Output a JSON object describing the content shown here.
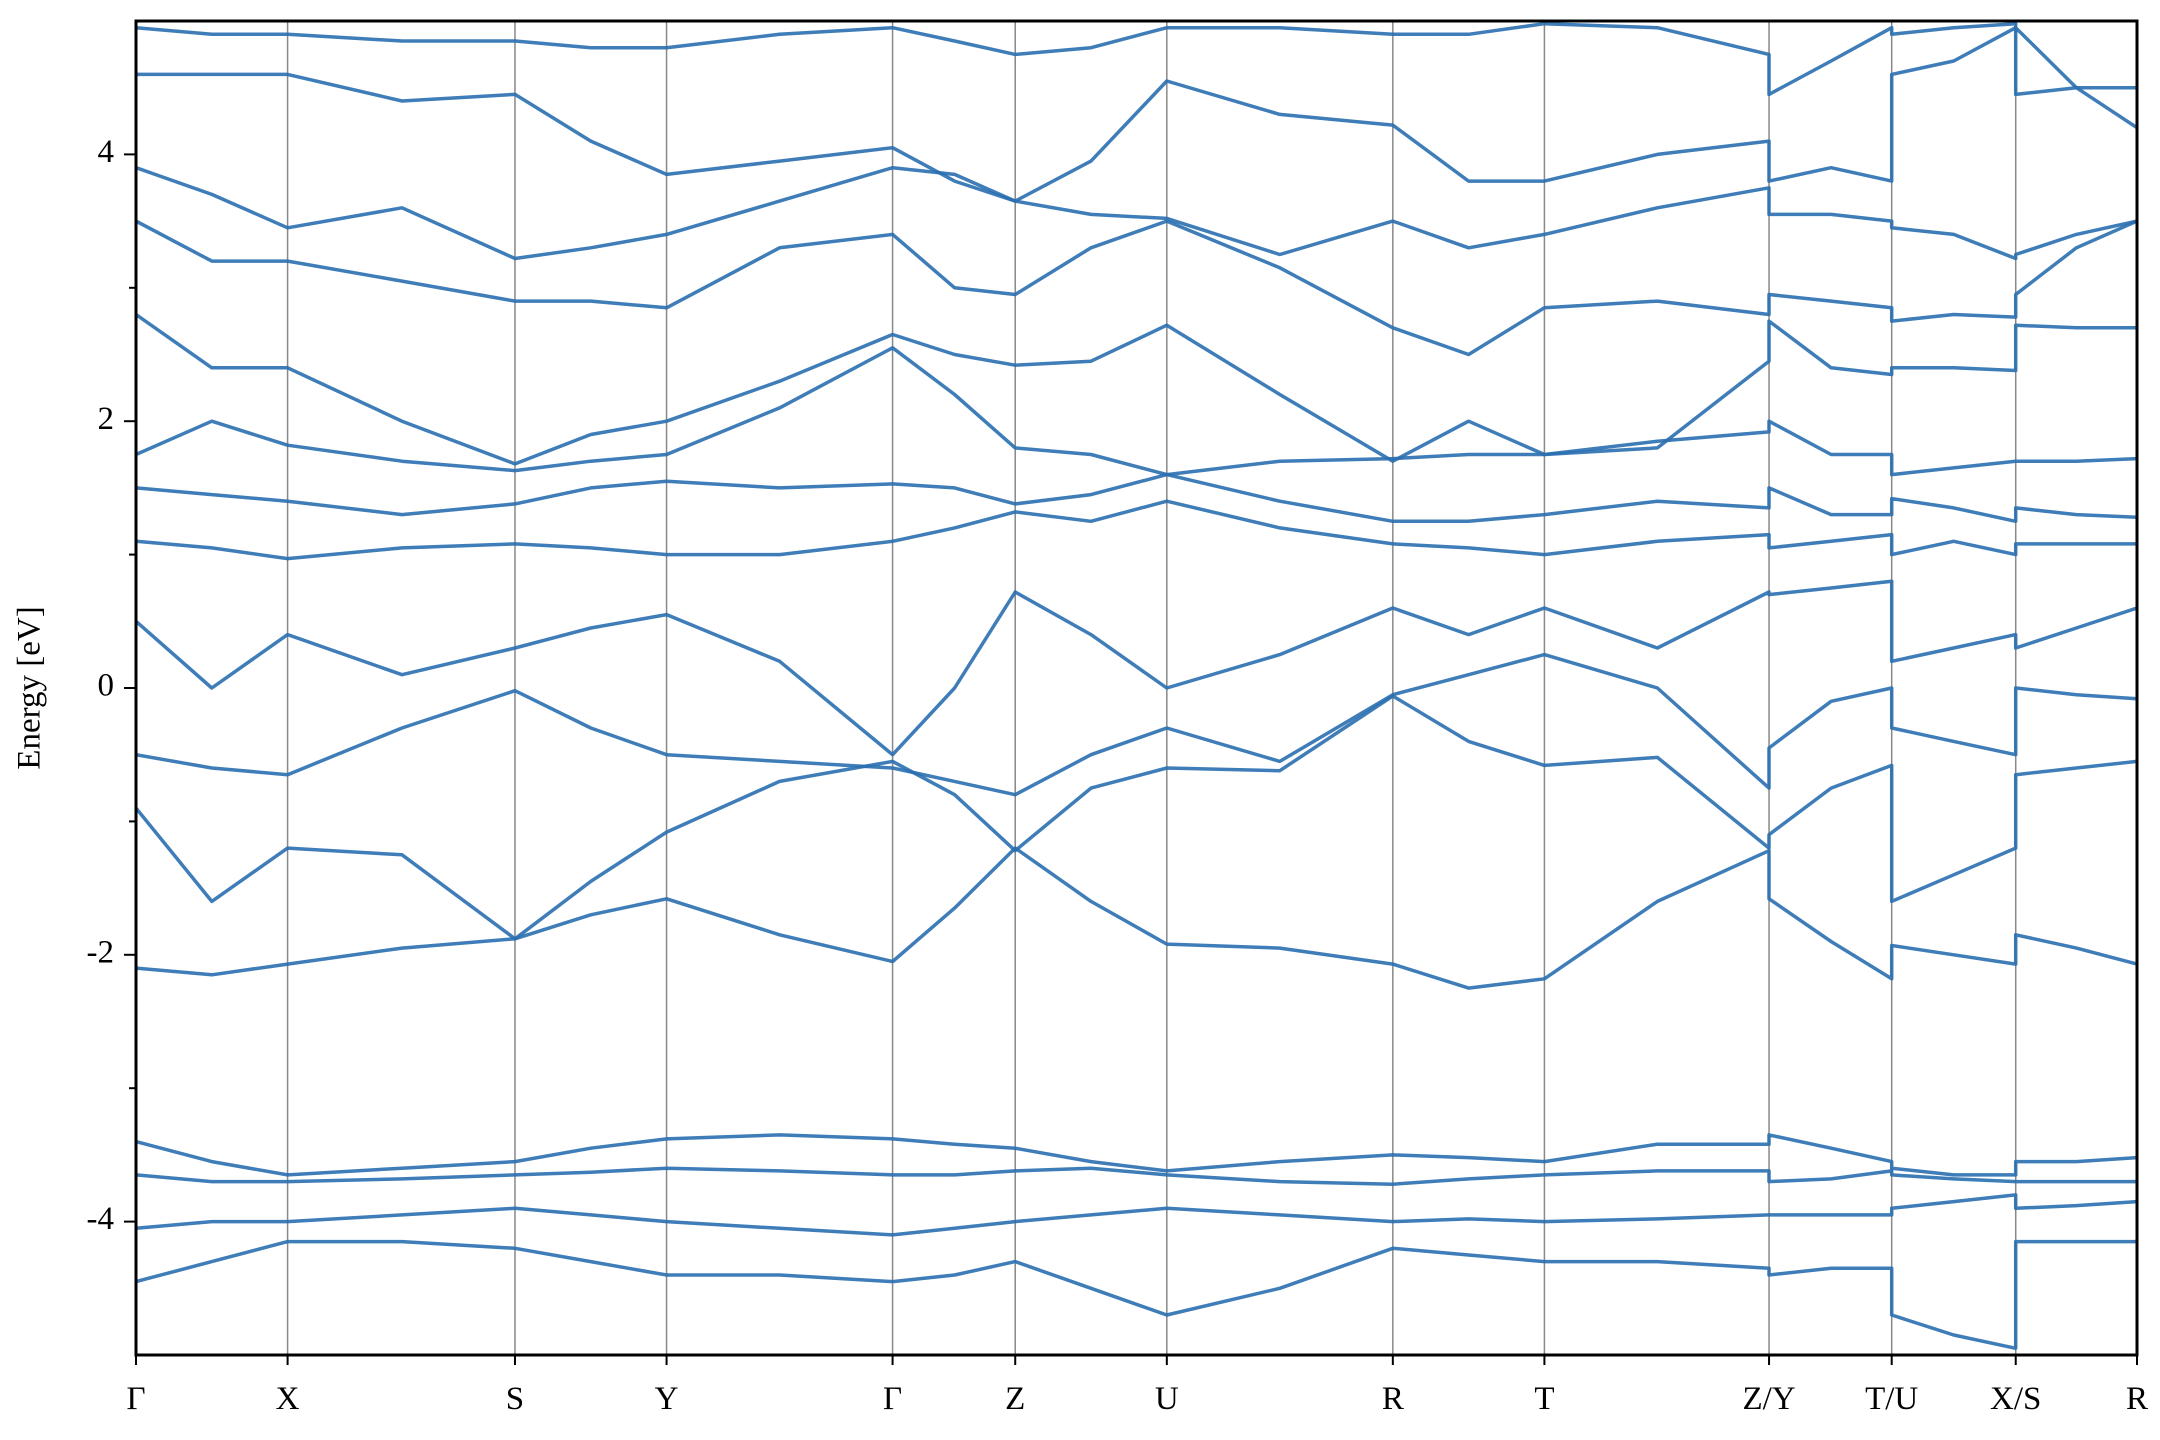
{
  "chart_data": {
    "type": "line",
    "ylabel": "Energy [eV]",
    "color": "#2a6fb0",
    "xlim": [
      0,
      14.52
    ],
    "ylim": [
      -5,
      5
    ],
    "yticks": [
      -4,
      -2,
      0,
      2,
      4
    ],
    "yminorticks": [
      -3,
      -1,
      1,
      3
    ],
    "xticks": [
      {
        "value": 0,
        "label": "Γ"
      },
      {
        "value": 1.1,
        "label": "X"
      },
      {
        "value": 2.75,
        "label": "S"
      },
      {
        "value": 3.85,
        "label": "Y"
      },
      {
        "value": 5.49,
        "label": "Γ"
      },
      {
        "value": 6.38,
        "label": "Z"
      },
      {
        "value": 7.48,
        "label": "U"
      },
      {
        "value": 9.12,
        "label": "R"
      },
      {
        "value": 10.22,
        "label": "T"
      },
      {
        "value": 11.85,
        "label": "Z/Y"
      },
      {
        "value": 12.74,
        "label": "T/U"
      },
      {
        "value": 13.64,
        "label": "X/S"
      },
      {
        "value": 14.52,
        "label": "R"
      }
    ],
    "xgrid": true,
    "x": [
      0,
      0.55,
      1.1,
      1.93,
      2.75,
      3.3,
      3.85,
      4.67,
      5.49,
      5.94,
      6.38,
      6.93,
      7.48,
      8.3,
      9.12,
      9.67,
      10.22,
      11.04,
      11.85,
      11.85,
      12.3,
      12.74,
      12.74,
      13.19,
      13.64,
      13.64,
      14.08,
      14.52
    ],
    "series": [
      {
        "values": [
          -4.45,
          -4.3,
          -4.15,
          -4.15,
          -4.2,
          -4.3,
          -4.4,
          -4.4,
          -4.45,
          -4.4,
          -4.3,
          -4.5,
          -4.7,
          -4.5,
          -4.2,
          -4.25,
          -4.3,
          -4.3,
          -4.35,
          -4.4,
          -4.35,
          -4.35,
          -4.7,
          -4.85,
          -4.95,
          -4.15,
          -4.15,
          -4.15
        ]
      },
      {
        "values": [
          -4.05,
          -4.0,
          -4.0,
          -3.95,
          -3.9,
          -3.95,
          -4.0,
          -4.05,
          -4.1,
          -4.05,
          -4.0,
          -3.95,
          -3.9,
          -3.95,
          -4.0,
          -3.98,
          -4.0,
          -3.98,
          -3.95,
          -3.95,
          -3.95,
          -3.95,
          -3.9,
          -3.85,
          -3.8,
          -3.9,
          -3.88,
          -3.85
        ]
      },
      {
        "values": [
          -3.65,
          -3.7,
          -3.7,
          -3.68,
          -3.65,
          -3.63,
          -3.6,
          -3.62,
          -3.65,
          -3.65,
          -3.62,
          -3.6,
          -3.65,
          -3.7,
          -3.72,
          -3.68,
          -3.65,
          -3.62,
          -3.62,
          -3.7,
          -3.68,
          -3.62,
          -3.65,
          -3.68,
          -3.7,
          -3.7,
          -3.7,
          -3.7
        ]
      },
      {
        "values": [
          -3.4,
          -3.55,
          -3.65,
          -3.6,
          -3.55,
          -3.45,
          -3.38,
          -3.35,
          -3.38,
          -3.42,
          -3.45,
          -3.55,
          -3.62,
          -3.55,
          -3.5,
          -3.52,
          -3.55,
          -3.42,
          -3.42,
          -3.35,
          -3.45,
          -3.55,
          -3.6,
          -3.65,
          -3.65,
          -3.55,
          -3.55,
          -3.52
        ]
      },
      {
        "values": [
          -2.1,
          -2.15,
          -2.07,
          -1.95,
          -1.88,
          -1.7,
          -1.58,
          -1.85,
          -2.05,
          -1.65,
          -1.2,
          -1.6,
          -1.92,
          -1.95,
          -2.07,
          -2.25,
          -2.18,
          -1.6,
          -1.22,
          -1.58,
          -1.9,
          -2.18,
          -1.93,
          -2.0,
          -2.07,
          -1.85,
          -1.95,
          -2.07
        ]
      },
      {
        "values": [
          -0.9,
          -1.6,
          -1.2,
          -1.25,
          -1.88,
          -1.45,
          -1.08,
          -0.7,
          -0.55,
          -0.8,
          -1.22,
          -0.75,
          -0.6,
          -0.62,
          -0.06,
          -0.4,
          -0.58,
          -0.52,
          -1.2,
          -1.1,
          -0.75,
          -0.58,
          -1.6,
          -1.4,
          -1.2,
          -0.65,
          -0.6,
          -0.55
        ]
      },
      {
        "values": [
          -0.5,
          -0.6,
          -0.65,
          -0.3,
          -0.02,
          -0.3,
          -0.5,
          -0.55,
          -0.6,
          -0.7,
          -0.8,
          -0.5,
          -0.3,
          -0.55,
          -0.05,
          0.1,
          0.25,
          0.0,
          -0.75,
          -0.45,
          -0.1,
          0.0,
          -0.3,
          -0.4,
          -0.5,
          0.0,
          -0.05,
          -0.08
        ]
      },
      {
        "values": [
          0.5,
          0.0,
          0.4,
          0.1,
          0.3,
          0.45,
          0.55,
          0.2,
          -0.5,
          0.0,
          0.72,
          0.4,
          0.0,
          0.25,
          0.6,
          0.4,
          0.6,
          0.3,
          0.72,
          0.7,
          0.75,
          0.8,
          0.2,
          0.3,
          0.4,
          0.3,
          0.45,
          0.6
        ]
      },
      {
        "values": [
          1.1,
          1.05,
          0.97,
          1.05,
          1.08,
          1.05,
          1.0,
          1.0,
          1.1,
          1.2,
          1.32,
          1.25,
          1.4,
          1.2,
          1.08,
          1.05,
          1.0,
          1.1,
          1.15,
          1.05,
          1.1,
          1.15,
          1.0,
          1.1,
          1.0,
          1.08,
          1.08,
          1.08
        ]
      },
      {
        "values": [
          1.5,
          1.45,
          1.4,
          1.3,
          1.38,
          1.5,
          1.55,
          1.5,
          1.53,
          1.5,
          1.38,
          1.45,
          1.6,
          1.4,
          1.25,
          1.25,
          1.3,
          1.4,
          1.35,
          1.5,
          1.3,
          1.3,
          1.42,
          1.35,
          1.25,
          1.35,
          1.3,
          1.28
        ]
      },
      {
        "values": [
          1.75,
          2.0,
          1.82,
          1.7,
          1.63,
          1.7,
          1.75,
          2.1,
          2.55,
          2.2,
          1.8,
          1.75,
          1.6,
          1.7,
          1.72,
          1.75,
          1.75,
          1.85,
          1.92,
          2.0,
          1.75,
          1.75,
          1.6,
          1.65,
          1.7,
          1.7,
          1.7,
          1.72
        ]
      },
      {
        "values": [
          2.8,
          2.4,
          2.4,
          2.0,
          1.68,
          1.9,
          2.0,
          2.3,
          2.65,
          2.5,
          2.42,
          2.45,
          2.72,
          2.2,
          1.7,
          2.0,
          1.75,
          1.8,
          2.45,
          2.75,
          2.4,
          2.35,
          2.4,
          2.4,
          2.38,
          2.72,
          2.7,
          2.7
        ]
      },
      {
        "values": [
          3.5,
          3.2,
          3.2,
          3.05,
          2.9,
          2.9,
          2.85,
          3.3,
          3.4,
          3.0,
          2.95,
          3.3,
          3.5,
          3.15,
          2.7,
          2.5,
          2.85,
          2.9,
          2.8,
          2.95,
          2.9,
          2.85,
          2.75,
          2.8,
          2.78,
          2.95,
          3.3,
          3.5
        ]
      },
      {
        "values": [
          3.9,
          3.7,
          3.45,
          3.6,
          3.22,
          3.3,
          3.4,
          3.65,
          3.9,
          3.85,
          3.65,
          3.55,
          3.52,
          3.25,
          3.5,
          3.3,
          3.4,
          3.6,
          3.75,
          3.55,
          3.55,
          3.5,
          3.45,
          3.4,
          3.22,
          3.25,
          3.4,
          3.5
        ]
      },
      {
        "values": [
          4.6,
          4.6,
          4.6,
          4.4,
          4.45,
          4.1,
          3.85,
          3.95,
          4.05,
          3.8,
          3.65,
          3.95,
          4.55,
          4.3,
          4.22,
          3.8,
          3.8,
          4.0,
          4.1,
          3.8,
          3.9,
          3.8,
          4.6,
          4.7,
          4.95,
          4.95,
          4.5,
          4.2
        ]
      },
      {
        "values": [
          4.95,
          4.9,
          4.9,
          4.85,
          4.85,
          4.8,
          4.8,
          4.9,
          4.95,
          4.85,
          4.75,
          4.8,
          4.95,
          4.95,
          4.9,
          4.9,
          4.98,
          4.95,
          4.75,
          4.45,
          4.7,
          4.95,
          4.9,
          4.95,
          4.98,
          4.45,
          4.5,
          4.5
        ]
      }
    ]
  }
}
